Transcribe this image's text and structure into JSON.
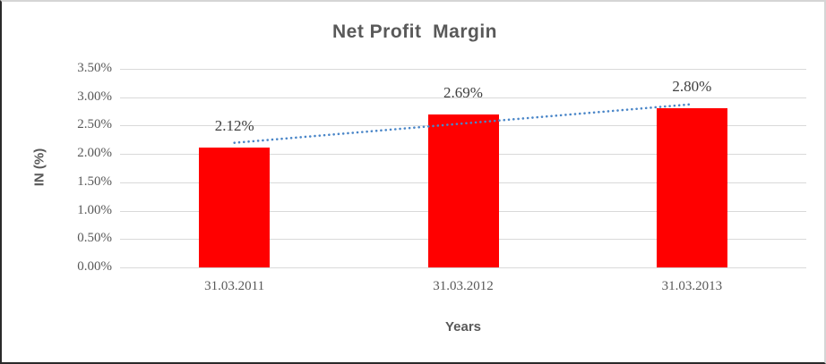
{
  "chart_data": {
    "type": "bar",
    "title": "Net Profit  Margin",
    "xlabel": "Years",
    "ylabel": "IN (%)",
    "categories": [
      "31.03.2011",
      "31.03.2012",
      "31.03.2013"
    ],
    "values": [
      2.12,
      2.69,
      2.8
    ],
    "data_labels": [
      "2.12%",
      "2.69%",
      "2.80%"
    ],
    "ylim": [
      0,
      3.5
    ],
    "ytick_step": 0.5,
    "ytick_labels": [
      "0.00%",
      "0.50%",
      "1.00%",
      "1.50%",
      "2.00%",
      "2.50%",
      "3.00%",
      "3.50%"
    ],
    "grid": true,
    "legend": "none",
    "bar_color": "#ff0000",
    "grid_color": "#d9d9d9",
    "axis_text_color": "#595959",
    "data_label_color": "#404040",
    "trendline": {
      "type": "linear",
      "style": "dotted",
      "color": "#4a86c8"
    }
  }
}
